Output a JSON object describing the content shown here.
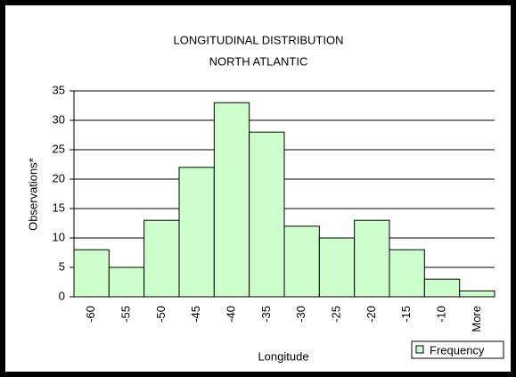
{
  "chart_data": {
    "type": "bar",
    "title": "LONGITUDINAL DISTRIBUTION",
    "subtitle": "NORTH ATLANTIC",
    "x_label": "Longitude",
    "y_label": "Observations*",
    "categories": [
      "-60",
      "-55",
      "-50",
      "-45",
      "-40",
      "-35",
      "-30",
      "-25",
      "-20",
      "-15",
      "-10",
      "More"
    ],
    "series": [
      {
        "name": "Frequency",
        "color": "#ccffcc",
        "values": [
          8,
          5,
          13,
          22,
          33,
          28,
          12,
          10,
          13,
          8,
          3,
          1
        ]
      }
    ],
    "ylim": [
      0,
      35
    ],
    "yticks": [
      0,
      5,
      10,
      15,
      20,
      25,
      30,
      35
    ],
    "grid": true,
    "legend": "bottom-right"
  }
}
